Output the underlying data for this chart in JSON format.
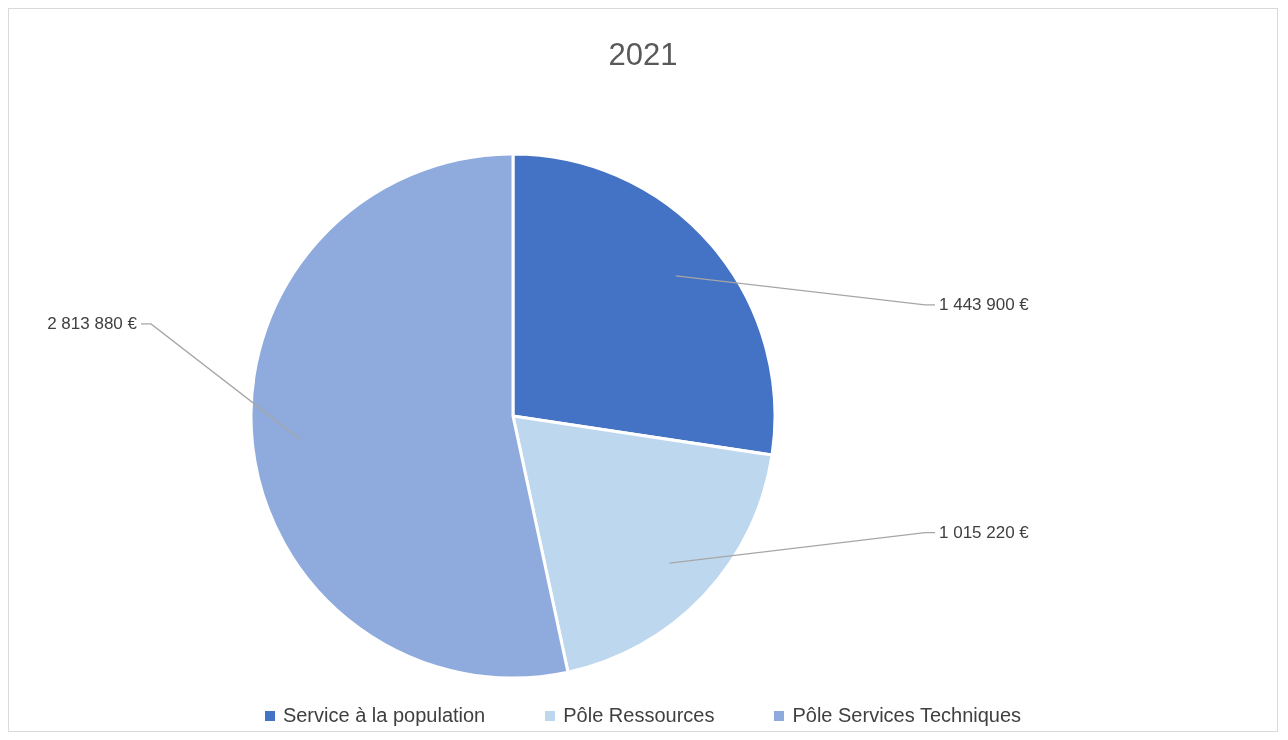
{
  "chart_data": {
    "type": "pie",
    "title": "2021",
    "categories": [
      "Service à la population",
      "Pôle Ressources",
      "Pôle Services Techniques"
    ],
    "values": [
      1443900,
      1015220,
      2813880
    ],
    "value_labels": [
      "1 443 900 €",
      "1 015 220 €",
      "2 813 880 €"
    ],
    "colors": [
      "#4472c4",
      "#bdd7ee",
      "#8faadc"
    ],
    "legend": "bottom"
  }
}
